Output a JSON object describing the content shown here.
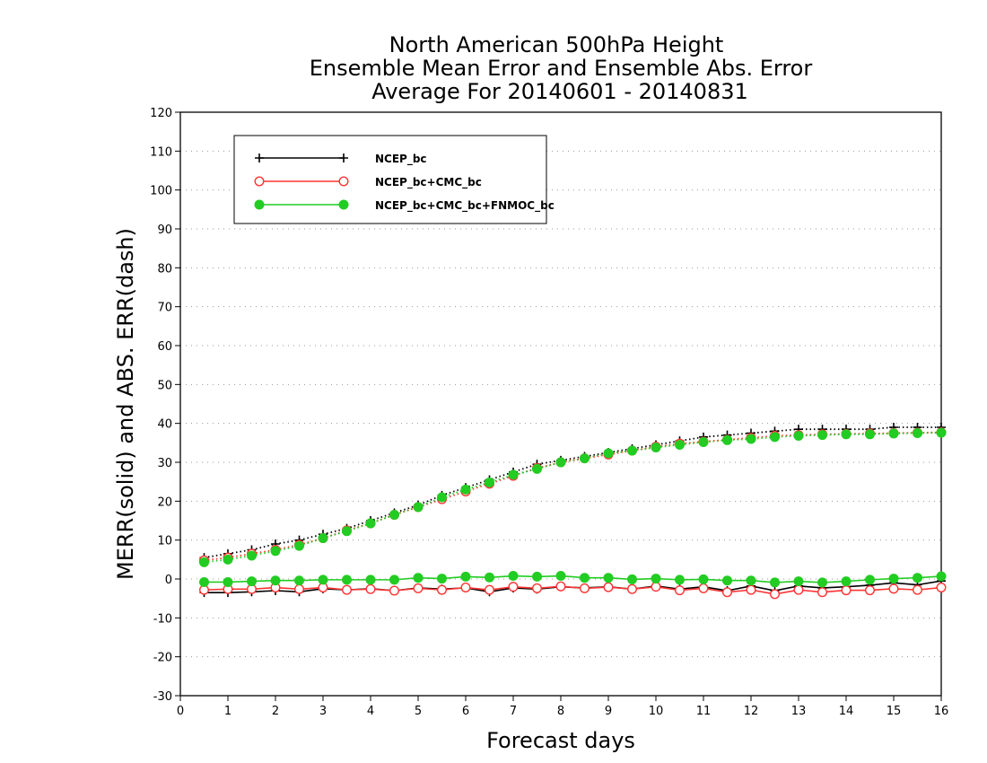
{
  "chart_data": {
    "type": "line",
    "title_lines": [
      "North American 500hPa Height",
      "Ensemble Mean Error and Ensemble Abs. Error",
      "Average For 20140601 - 20140831"
    ],
    "xlabel": "Forecast days",
    "ylabel": "MERR(solid) and ABS. ERR(dash)",
    "xlim": [
      0,
      16
    ],
    "ylim": [
      -30,
      120
    ],
    "xticks": [
      "0",
      "1",
      "2",
      "3",
      "4",
      "5",
      "6",
      "7",
      "8",
      "9",
      "10",
      "11",
      "12",
      "13",
      "14",
      "15",
      "16"
    ],
    "yticks": [
      "-30",
      "-20",
      "-10",
      "0",
      "10",
      "20",
      "30",
      "40",
      "50",
      "60",
      "70",
      "80",
      "90",
      "100",
      "110",
      "120"
    ],
    "grid": "horizontal dotted",
    "legend_position": "top-left",
    "x": [
      0.5,
      1,
      1.5,
      2,
      2.5,
      3,
      3.5,
      4,
      4.5,
      5,
      5.5,
      6,
      6.5,
      7,
      7.5,
      8,
      8.5,
      9,
      9.5,
      10,
      10.5,
      11,
      11.5,
      12,
      12.5,
      13,
      13.5,
      14,
      14.5,
      15,
      15.5,
      16
    ],
    "series": [
      {
        "name": "NCEP_bc",
        "color": "#000000",
        "marker": "plus",
        "merr": [
          -3.5,
          -3.5,
          -3.3,
          -3.0,
          -3.3,
          -2.5,
          -2.8,
          -2.5,
          -3.0,
          -2.3,
          -2.6,
          -2.3,
          -3.3,
          -2.3,
          -2.6,
          -2.0,
          -2.3,
          -2.0,
          -2.6,
          -1.8,
          -2.6,
          -2.0,
          -3.0,
          -1.8,
          -3.0,
          -1.8,
          -2.3,
          -2.0,
          -1.6,
          -1.0,
          -1.5,
          -0.5
        ],
        "abs_err": [
          5.5,
          6.5,
          7.5,
          9.0,
          10.0,
          11.5,
          13.0,
          15.0,
          17.0,
          19.0,
          21.5,
          23.5,
          25.5,
          27.5,
          29.5,
          30.5,
          31.5,
          32.5,
          33.5,
          34.5,
          35.5,
          36.5,
          37.0,
          37.5,
          38.0,
          38.5,
          38.5,
          38.5,
          38.5,
          39.0,
          39.0,
          39.0
        ]
      },
      {
        "name": "NCEP_bc+CMC_bc",
        "color": "#ff3333",
        "marker": "open-circle",
        "merr": [
          -2.8,
          -2.6,
          -2.6,
          -2.2,
          -2.6,
          -2.2,
          -2.8,
          -2.6,
          -3.0,
          -2.4,
          -2.8,
          -2.2,
          -2.8,
          -2.0,
          -2.4,
          -1.9,
          -2.4,
          -2.1,
          -2.6,
          -2.0,
          -2.9,
          -2.4,
          -3.4,
          -2.8,
          -3.9,
          -2.8,
          -3.4,
          -2.9,
          -2.9,
          -2.5,
          -2.8,
          -2.2
        ],
        "abs_err": [
          4.8,
          5.5,
          6.5,
          7.5,
          8.8,
          10.5,
          12.5,
          14.3,
          16.5,
          18.5,
          20.5,
          22.5,
          24.5,
          26.5,
          28.5,
          30.0,
          31.0,
          32.0,
          33.0,
          34.0,
          34.8,
          35.3,
          35.8,
          36.3,
          36.8,
          37.0,
          37.2,
          37.3,
          37.4,
          37.5,
          37.6,
          37.7
        ]
      },
      {
        "name": "NCEP_bc+CMC_bc+FNMOC_bc",
        "color": "#22cc22",
        "marker": "filled-circle",
        "merr": [
          -0.8,
          -0.8,
          -0.6,
          -0.4,
          -0.4,
          -0.2,
          -0.2,
          -0.2,
          -0.2,
          0.3,
          0.1,
          0.6,
          0.4,
          0.8,
          0.6,
          0.8,
          0.3,
          0.3,
          -0.1,
          0.1,
          -0.2,
          -0.1,
          -0.4,
          -0.4,
          -0.9,
          -0.6,
          -0.9,
          -0.6,
          -0.2,
          0.1,
          0.3,
          0.7
        ],
        "abs_err": [
          4.3,
          5.0,
          6.0,
          7.2,
          8.5,
          10.5,
          12.3,
          14.3,
          16.5,
          18.5,
          21.0,
          23.0,
          24.8,
          26.8,
          28.3,
          30.0,
          31.0,
          32.3,
          33.0,
          33.8,
          34.5,
          35.2,
          35.7,
          36.0,
          36.5,
          36.8,
          37.0,
          37.2,
          37.2,
          37.4,
          37.5,
          37.6
        ]
      }
    ]
  }
}
